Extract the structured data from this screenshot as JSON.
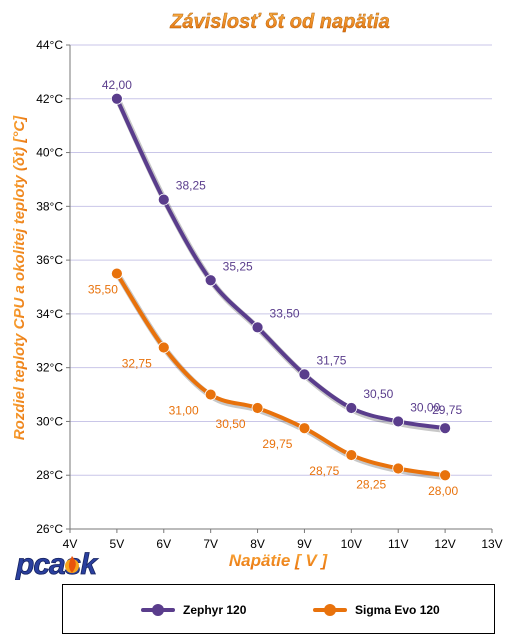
{
  "chart_data": {
    "type": "line",
    "title": "Závislosť δt od napätia",
    "xlabel": "Napätie [ V ]",
    "ylabel": "Rozdiel teploty CPU a okolitej teploty (δt) [°C]",
    "x_ticks": [
      "4V",
      "5V",
      "6V",
      "7V",
      "8V",
      "9V",
      "10V",
      "11V",
      "12V",
      "13V"
    ],
    "y_ticks": [
      "26°C",
      "28°C",
      "30°C",
      "32°C",
      "34°C",
      "36°C",
      "38°C",
      "40°C",
      "42°C",
      "44°C"
    ],
    "xlim": [
      4,
      13
    ],
    "ylim": [
      26,
      44
    ],
    "grid": true,
    "legend_position": "bottom",
    "x": [
      5,
      6,
      7,
      8,
      9,
      10,
      11,
      12
    ],
    "series": [
      {
        "name": "Zephyr 120",
        "color": "#5a3d8c",
        "values": [
          42.0,
          38.25,
          35.25,
          33.5,
          31.75,
          30.5,
          30.0,
          29.75
        ],
        "labels": [
          "42,00",
          "38,25",
          "35,25",
          "33,50",
          "31,75",
          "30,50",
          "30,00",
          "29,75"
        ]
      },
      {
        "name": "Sigma Evo 120",
        "color": "#e8720c",
        "values": [
          35.5,
          32.75,
          31.0,
          30.5,
          29.75,
          28.75,
          28.25,
          28.0
        ],
        "labels": [
          "35,50",
          "32,75",
          "31,00",
          "30,50",
          "29,75",
          "28,75",
          "28,25",
          "28,00"
        ]
      }
    ]
  },
  "logo": {
    "text": "pcask"
  },
  "colors": {
    "title": "#f08a1c",
    "grid": "#c9c6e8",
    "axis": "#777777"
  }
}
